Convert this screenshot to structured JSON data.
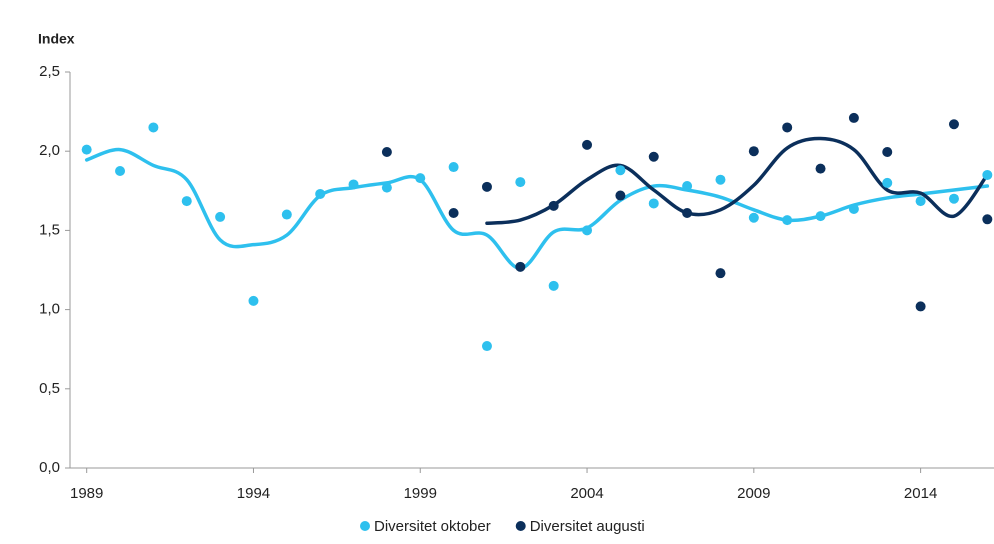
{
  "chart_data": {
    "type": "scatter-trend",
    "y_label": "Index",
    "x": [
      1989,
      1990,
      1991,
      1992,
      1993,
      1994,
      1995,
      1996,
      1997,
      1998,
      1999,
      2000,
      2001,
      2002,
      2003,
      2004,
      2005,
      2006,
      2007,
      2008,
      2009,
      2010,
      2011,
      2012,
      2013,
      2014,
      2015,
      2016
    ],
    "xlim": [
      1988.5,
      2016.2
    ],
    "xticks": [
      1989,
      1994,
      1999,
      2004,
      2009,
      2014
    ],
    "ylim": [
      0,
      2.5
    ],
    "yticks": [
      {
        "value": 0,
        "label": "0,0"
      },
      {
        "value": 0.5,
        "label": "0,5"
      },
      {
        "value": 1,
        "label": "1,0"
      },
      {
        "value": 1.5,
        "label": "1,5"
      },
      {
        "value": 2,
        "label": "2,0"
      },
      {
        "value": 2.5,
        "label": "2,5"
      }
    ],
    "legend": "bottom",
    "series": [
      {
        "name": "Diversitet oktober",
        "color": "#2ec0ee",
        "values": [
          2.01,
          1.875,
          2.15,
          1.685,
          1.585,
          1.055,
          1.6,
          1.73,
          1.79,
          1.77,
          1.83,
          1.9,
          0.77,
          1.805,
          1.15,
          1.5,
          1.88,
          1.67,
          1.78,
          1.82,
          1.58,
          1.565,
          1.59,
          1.635,
          1.8,
          1.685,
          1.7,
          1.85
        ],
        "trend": [
          1.945,
          2.01,
          1.91,
          1.82,
          1.44,
          1.41,
          1.47,
          1.72,
          1.77,
          1.8,
          1.82,
          1.5,
          1.47,
          1.26,
          1.49,
          1.515,
          1.69,
          1.78,
          1.755,
          1.71,
          1.63,
          1.565,
          1.59,
          1.66,
          1.705,
          1.73,
          1.755,
          1.78
        ]
      },
      {
        "name": "Diversitet augusti",
        "color": "#0b2f5b",
        "values": [
          null,
          null,
          null,
          null,
          null,
          null,
          null,
          null,
          null,
          1.995,
          null,
          1.61,
          1.775,
          1.27,
          1.655,
          2.04,
          1.72,
          1.965,
          1.61,
          1.23,
          2.0,
          2.15,
          1.89,
          2.21,
          1.995,
          1.02,
          2.17,
          1.57
        ],
        "trend": [
          null,
          null,
          null,
          null,
          null,
          null,
          null,
          null,
          null,
          null,
          null,
          null,
          1.545,
          1.565,
          1.66,
          1.82,
          1.91,
          1.755,
          1.61,
          1.63,
          1.785,
          2.02,
          2.08,
          2.01,
          1.755,
          1.735,
          1.59,
          1.85
        ]
      }
    ]
  }
}
